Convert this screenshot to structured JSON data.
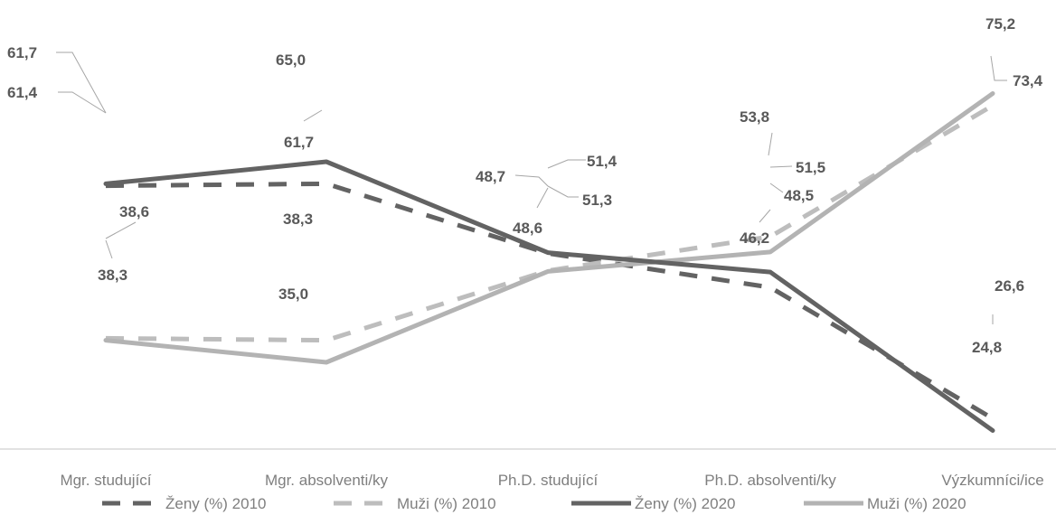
{
  "chart_data": {
    "type": "line",
    "title": "",
    "xlabel": "",
    "ylabel": "",
    "ylim": [
      0,
      100
    ],
    "grid": false,
    "legend_position": "bottom",
    "categories": [
      "Mgr. studující",
      "Mgr. absolventi/ky",
      "Ph.D. studující",
      "Ph.D. absolventi/ky",
      "Výzkumníci/ice"
    ],
    "series": [
      {
        "name": "Ženy (%) 2010",
        "values": [
          61.4,
          61.7,
          51.3,
          46.2,
          26.6
        ],
        "color": "#636363",
        "dash": true
      },
      {
        "name": "Muži (%) 2010",
        "values": [
          38.6,
          38.3,
          48.7,
          53.8,
          73.4
        ],
        "color": "#bdbdbd",
        "dash": true
      },
      {
        "name": "Ženy (%) 2020",
        "values": [
          61.7,
          65.0,
          51.4,
          48.5,
          24.8
        ],
        "color": "#636363",
        "dash": false
      },
      {
        "name": "Muži (%) 2020",
        "values": [
          38.3,
          35.0,
          48.6,
          51.5,
          75.2
        ],
        "color": "#b3b3b3",
        "dash": false
      }
    ],
    "data_labels": [
      {
        "text": "61,7"
      },
      {
        "text": "61,4"
      },
      {
        "text": "65,0"
      },
      {
        "text": "61,7"
      },
      {
        "text": "38,6"
      },
      {
        "text": "38,3"
      },
      {
        "text": "38,3"
      },
      {
        "text": "35,0"
      },
      {
        "text": "48,7"
      },
      {
        "text": "51,4"
      },
      {
        "text": "51,3"
      },
      {
        "text": "48,6"
      },
      {
        "text": "53,8"
      },
      {
        "text": "51,5"
      },
      {
        "text": "48,5"
      },
      {
        "text": "46,2"
      },
      {
        "text": "75,2"
      },
      {
        "text": "73,4"
      },
      {
        "text": "26,6"
      },
      {
        "text": "24,8"
      }
    ]
  }
}
